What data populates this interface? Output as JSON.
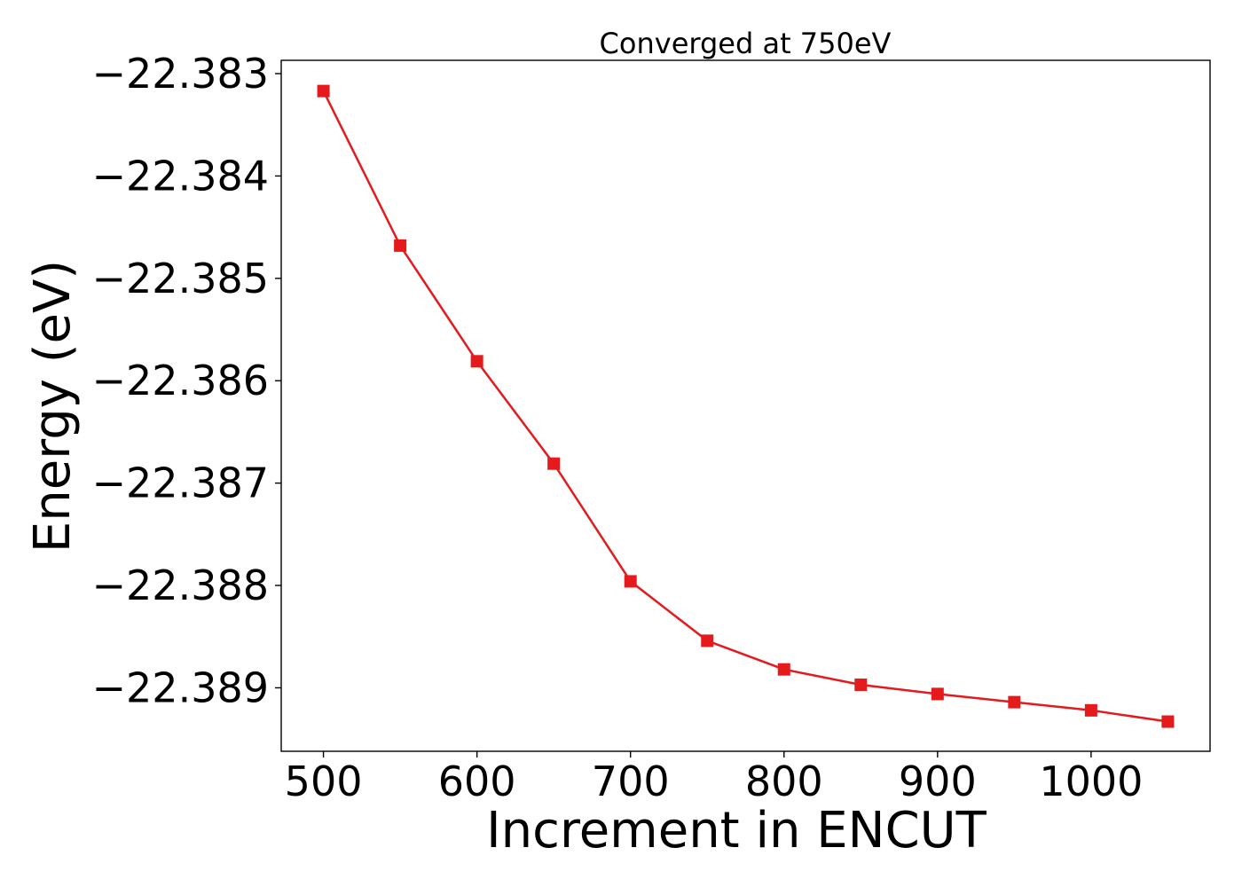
{
  "colors": {
    "series": "#e41a1c",
    "axis": "#000000",
    "background": "#ffffff"
  },
  "chart_data": {
    "type": "line",
    "title": "Converged at 750eV",
    "xlabel": "Increment in ENCUT",
    "ylabel": "Energy (eV)",
    "grid": false,
    "legend": "none",
    "marker": "square",
    "xlim": [
      472.5,
      1077.5
    ],
    "ylim": [
      -22.38962,
      -22.38287
    ],
    "xticks": [
      500,
      600,
      700,
      800,
      900,
      1000
    ],
    "xtick_labels": [
      "500",
      "600",
      "700",
      "800",
      "900",
      "1000"
    ],
    "yticks": [
      -22.383,
      -22.384,
      -22.385,
      -22.386,
      -22.387,
      -22.388,
      -22.389
    ],
    "ytick_labels": [
      "−22.383",
      "−22.384",
      "−22.385",
      "−22.386",
      "−22.387",
      "−22.388",
      "−22.389"
    ],
    "series": [
      {
        "x": [
          500,
          550,
          600,
          650,
          700,
          750,
          800,
          850,
          900,
          950,
          1000,
          1050
        ],
        "y": [
          -22.38317,
          -22.38468,
          -22.38581,
          -22.38681,
          -22.38796,
          -22.38854,
          -22.38882,
          -22.38897,
          -22.38906,
          -22.38914,
          -22.38922,
          -22.38933
        ]
      }
    ]
  }
}
